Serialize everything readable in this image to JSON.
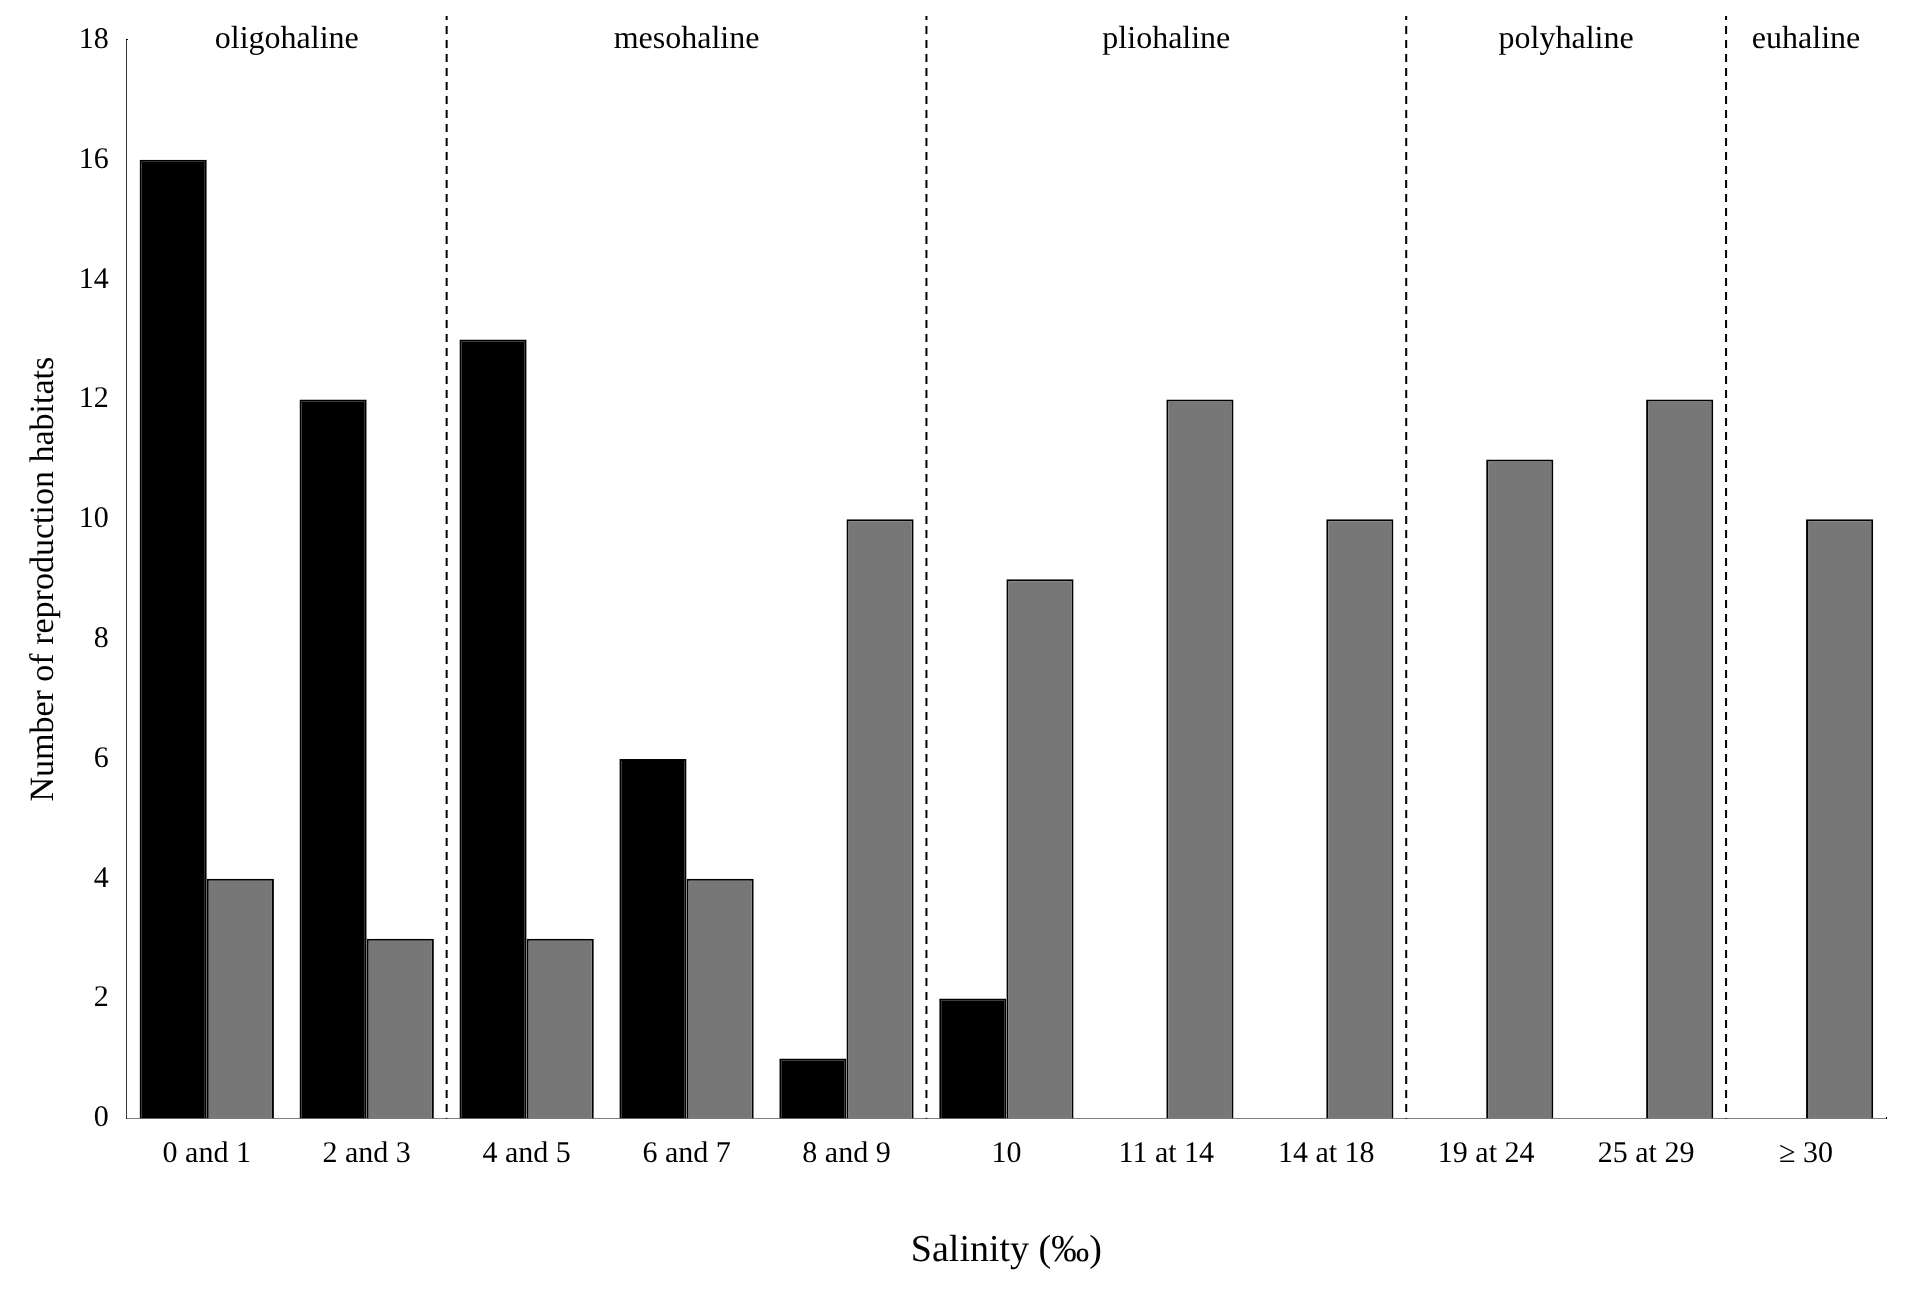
{
  "chart_data": {
    "type": "bar",
    "xlabel": "Salinity (‰)",
    "ylabel": "Number of reproduction habitats",
    "categories": [
      "0 and 1",
      "2 and 3",
      "4 and 5",
      "6 and 7",
      "8 and 9",
      "10",
      "11 at 14",
      "14 at 18",
      "19 at 24",
      "25 at 29",
      "≥ 30"
    ],
    "series": [
      {
        "color": "#000000",
        "values": [
          16,
          12,
          13,
          6,
          1,
          2,
          null,
          null,
          null,
          null,
          null
        ]
      },
      {
        "color": "#777777",
        "values": [
          4,
          3,
          3,
          4,
          10,
          9,
          12,
          10,
          11,
          12,
          10
        ]
      }
    ],
    "ylim": [
      0,
      18
    ],
    "yticks": [
      0,
      2,
      4,
      6,
      8,
      10,
      12,
      14,
      16,
      18
    ],
    "grid": false,
    "legend": false,
    "bands": [
      {
        "axis": "x",
        "from": "0 and 1",
        "to": "2 and 3",
        "label": "oligohaline",
        "color": "#ffffff"
      },
      {
        "axis": "x",
        "from": "4 and 5",
        "to": "8 and 9",
        "label": "mesohaline",
        "color": "#ffffff"
      },
      {
        "axis": "x",
        "from": "10",
        "to": "14 at 18",
        "label": "pliohaline",
        "color": "#ffffff"
      },
      {
        "axis": "x",
        "from": "19 at 24",
        "to": "25 at 29",
        "label": "polyhaline",
        "color": "#ffffff"
      },
      {
        "axis": "x",
        "from": "≥ 30",
        "to": "≥ 30",
        "label": "euhaline",
        "color": "#ffffff"
      }
    ]
  }
}
